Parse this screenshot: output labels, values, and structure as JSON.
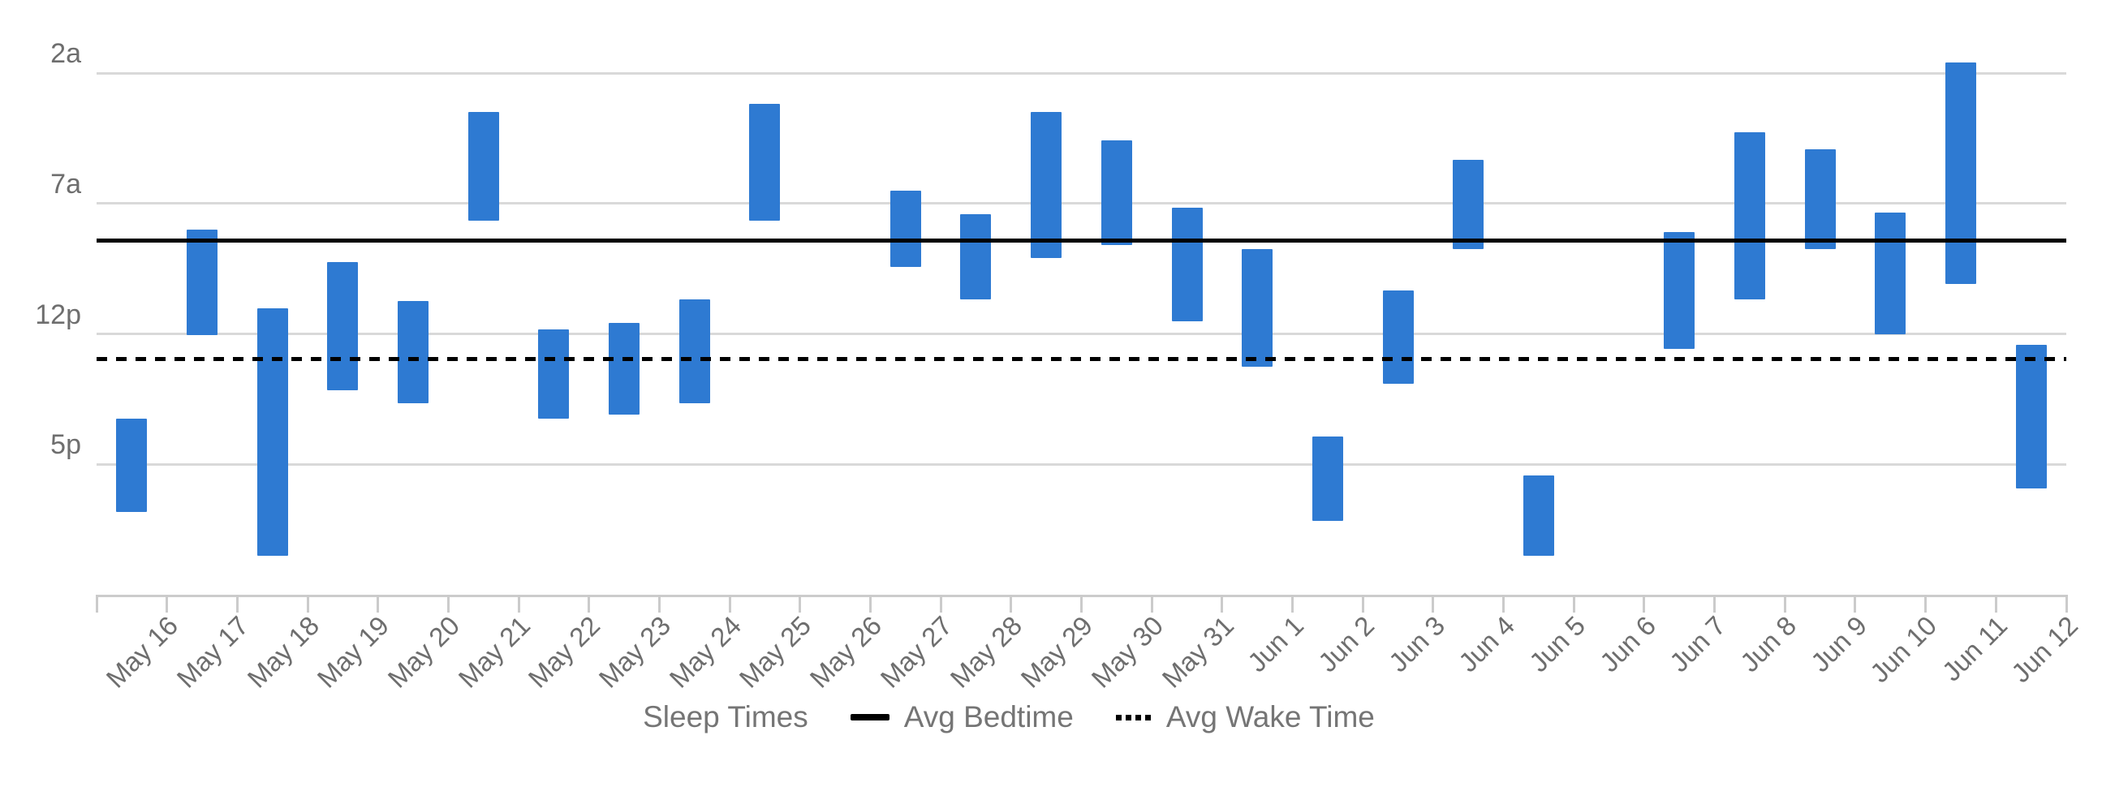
{
  "chart_data": {
    "type": "bar",
    "subtype": "floating-range-bar",
    "title": "",
    "x_axis": {
      "categories": [
        "May 16",
        "May 17",
        "May 18",
        "May 19",
        "May 20",
        "May 21",
        "May 22",
        "May 23",
        "May 24",
        "May 25",
        "May 26",
        "May 27",
        "May 28",
        "May 29",
        "May 30",
        "May 31",
        "Jun 1",
        "Jun 2",
        "Jun 3",
        "Jun 4",
        "Jun 5",
        "Jun 6",
        "Jun 7",
        "Jun 8",
        "Jun 9",
        "Jun 10",
        "Jun 11",
        "Jun 12"
      ],
      "label_rotation_deg": -45
    },
    "y_axis": {
      "ticks": [
        {
          "label": "2a",
          "hour": 2
        },
        {
          "label": "7a",
          "hour": 7
        },
        {
          "label": "12p",
          "hour": 12
        },
        {
          "label": "5p",
          "hour": 17
        }
      ],
      "domain_hours": [
        0,
        22
      ],
      "direction": "time-of-day increases downward",
      "grid": true
    },
    "series": [
      {
        "name": "Sleep Times",
        "type": "range-bar",
        "color": "#2E7AD2",
        "ranges_hours": [
          [
            15.25,
            18.83
          ],
          [
            8.0,
            12.05
          ],
          [
            11.0,
            20.5
          ],
          [
            9.25,
            14.17
          ],
          [
            10.75,
            14.67
          ],
          [
            3.5,
            7.67
          ],
          [
            11.83,
            15.25
          ],
          [
            11.58,
            15.08
          ],
          [
            10.67,
            14.67
          ],
          [
            3.17,
            7.67
          ],
          null,
          [
            6.5,
            9.42
          ],
          [
            7.42,
            10.67
          ],
          [
            3.5,
            9.08
          ],
          [
            4.58,
            8.58
          ],
          [
            7.17,
            11.5
          ],
          [
            8.75,
            13.25
          ],
          [
            15.92,
            19.17
          ],
          [
            10.33,
            13.92
          ],
          [
            5.33,
            8.75
          ],
          [
            17.42,
            20.5
          ],
          null,
          [
            8.08,
            12.58
          ],
          [
            4.25,
            10.67
          ],
          [
            4.92,
            8.75
          ],
          [
            7.33,
            12.0
          ],
          [
            1.58,
            10.08
          ],
          [
            12.42,
            17.92
          ]
        ]
      }
    ],
    "reference_lines": [
      {
        "name": "Avg Bedtime",
        "hour": 8.43,
        "approx_time": "8:25a",
        "style": "solid",
        "color": "#000000"
      },
      {
        "name": "Avg Wake Time",
        "hour": 12.97,
        "approx_time": "1:00p",
        "style": "dotted",
        "color": "#000000"
      }
    ],
    "legend": {
      "position": "bottom-center",
      "items": [
        {
          "label": "Sleep Times",
          "marker": "circle-icon",
          "color": "#2E7AD2"
        },
        {
          "label": "Avg Bedtime",
          "marker": "solid-line-icon",
          "color": "#000000"
        },
        {
          "label": "Avg Wake Time",
          "marker": "dotted-line-icon",
          "color": "#000000"
        }
      ]
    },
    "colors": {
      "bar": "#2E7AD2",
      "gridline": "#D9D9D9",
      "axis_line": "#CCCCCC",
      "axis_text": "#6E6E6E",
      "legend_text": "#757575",
      "reference_line": "#000000",
      "background": "#FFFFFF"
    }
  }
}
